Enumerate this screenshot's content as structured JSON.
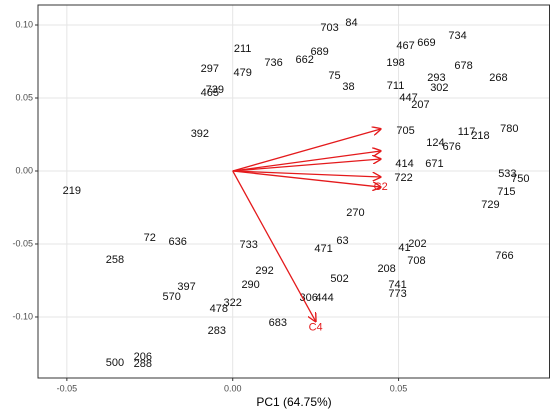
{
  "chart_data": {
    "type": "biplot",
    "xlabel": "PC1 (64.75%)",
    "xlim": [
      -0.0587,
      0.0955
    ],
    "ylim": [
      -0.1418,
      0.1137
    ],
    "xticks": [
      {
        "value": -0.05,
        "label": "-0.05"
      },
      {
        "value": 0,
        "label": "0.00"
      },
      {
        "value": 0.05,
        "label": "0.05"
      }
    ],
    "yticks": [
      {
        "value": -0.1,
        "label": "-0.10"
      },
      {
        "value": -0.05,
        "label": "-0.05"
      },
      {
        "value": 0,
        "label": "0.00"
      },
      {
        "value": 0.05,
        "label": "0.05"
      },
      {
        "value": 0.1,
        "label": "0.10"
      }
    ],
    "grid": true,
    "points": {
      "color": "#111111",
      "labels": [
        "703",
        "84",
        "198",
        "734",
        "669",
        "467",
        "678",
        "293",
        "268",
        "302",
        "711",
        "447",
        "207",
        "117",
        "218",
        "780",
        "676",
        "124",
        "671",
        "533",
        "750",
        "715",
        "729",
        "766",
        "202",
        "708",
        "208",
        "741",
        "773",
        "502",
        "306",
        "444",
        "683",
        "283",
        "500",
        "288",
        "206",
        "258",
        "570",
        "397",
        "478",
        "322",
        "290",
        "211",
        "297",
        "479",
        "739",
        "465",
        "689",
        "662",
        "736",
        "38",
        "75",
        "705",
        "414",
        "722",
        "471",
        "63",
        "41",
        "270",
        "733",
        "292",
        "72",
        "636",
        "219",
        "392"
      ],
      "x": [
        0.0292,
        0.0358,
        0.0491,
        0.0678,
        0.0584,
        0.0521,
        0.0696,
        0.0614,
        0.0801,
        0.0623,
        0.0491,
        0.053,
        0.0566,
        0.0705,
        0.0747,
        0.0834,
        0.066,
        0.0611,
        0.0608,
        0.0828,
        0.0867,
        0.0825,
        0.0777,
        0.0819,
        0.0557,
        0.0554,
        0.0464,
        0.0497,
        0.0497,
        0.0322,
        0.0229,
        0.0277,
        0.0136,
        -0.0048,
        -0.0355,
        -0.0271,
        -0.0271,
        -0.0355,
        -0.0184,
        -0.0139,
        -0.0042,
        0,
        0.0054,
        0.003,
        -0.0069,
        0.003,
        -0.0054,
        -0.0069,
        0.0262,
        0.0217,
        0.0123,
        0.0349,
        0.0307,
        0.0521,
        0.0518,
        0.0515,
        0.0274,
        0.0331,
        0.0518,
        0.037,
        0.0048,
        0.0096,
        -0.025,
        -0.0166,
        -0.0485,
        -0.0099
      ],
      "y": [
        0.0979,
        0.1014,
        0.074,
        0.0925,
        0.0877,
        0.0856,
        0.0719,
        0.0637,
        0.0637,
        0.0568,
        0.0582,
        0.05,
        0.0452,
        0.0267,
        0.024,
        0.0288,
        0.0164,
        0.0192,
        0.0048,
        -0.0021,
        -0.0055,
        -0.0144,
        -0.0233,
        -0.0582,
        -0.05,
        -0.0616,
        -0.0671,
        -0.0781,
        -0.0842,
        -0.074,
        -0.087,
        -0.087,
        -0.1041,
        -0.1096,
        -0.1315,
        -0.1322,
        -0.1274,
        -0.061,
        -0.0863,
        -0.0795,
        -0.0945,
        -0.0904,
        -0.0781,
        0.0836,
        0.0699,
        0.0671,
        0.0555,
        0.0534,
        0.0815,
        0.076,
        0.074,
        0.0575,
        0.0651,
        0.0274,
        0.0048,
        -0.0048,
        -0.0534,
        -0.0479,
        -0.0527,
        -0.0288,
        -0.0507,
        -0.0685,
        -0.0459,
        -0.0486,
        -0.0137,
        0.0253
      ]
    },
    "arrows": {
      "color": "#e41a1c",
      "labels": [
        null,
        null,
        null,
        null,
        "C2",
        "C4"
      ],
      "x": [
        0.0446,
        0.0446,
        0.0446,
        0.0446,
        0.0446,
        0.025
      ],
      "y": [
        0.0288,
        0.0137,
        0.0082,
        -0.0041,
        -0.011,
        -0.103
      ]
    }
  }
}
